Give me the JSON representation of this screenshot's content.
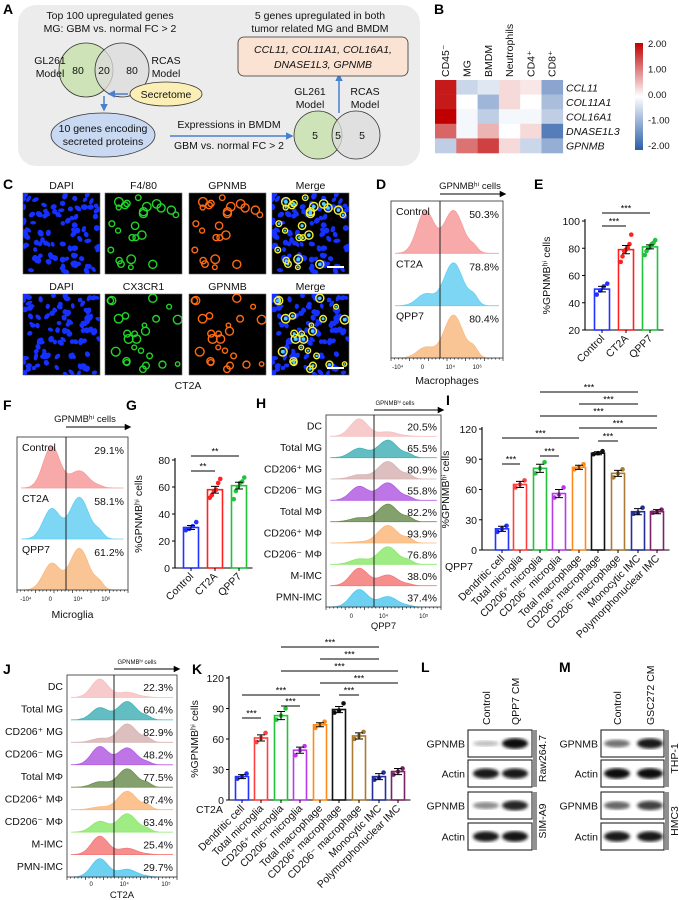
{
  "panel_labels": {
    "a": "A",
    "b": "B",
    "c": "C",
    "d": "D",
    "e": "E",
    "f": "F",
    "g": "G",
    "h": "H",
    "i": "I",
    "j": "J",
    "k": "K",
    "l": "L",
    "m": "M"
  },
  "panel_a": {
    "left_header": [
      "Top 100 upregulated genes",
      "MG: GBM vs. normal FC > 2"
    ],
    "venn1": {
      "left_label": [
        "GL261",
        "Model"
      ],
      "right_label": [
        "RCAS",
        "Model"
      ],
      "left": "80",
      "overlap": "20",
      "right": "80"
    },
    "secretome": "Secretome",
    "secreted_box": [
      "10 genes encoding",
      "secreted proteins"
    ],
    "arrow_label_top": "Expressions in BMDM",
    "arrow_label_bottom": "GBM vs. normal FC > 2",
    "venn2": {
      "left_label": [
        "GL261",
        "Model"
      ],
      "right_label": [
        "RCAS",
        "Model"
      ],
      "left": "5",
      "overlap": "5",
      "right": "5"
    },
    "right_header": [
      "5 genes upregulated in both",
      "tumor related MG and BMDM"
    ],
    "result_box": [
      "CCL11, COL11A1, COL16A1,",
      "DNASE1L3, GPNMB"
    ],
    "colors": {
      "venn_green": "#cfe3b8",
      "venn_gray": "#dcdcdc",
      "secretome": "#fbefb5",
      "secreted": "#c9d9f1",
      "result": "#fbe3d3",
      "arrow": "#4a7fd0",
      "panel_bg": "#ececec"
    }
  },
  "panel_c": {
    "row1": [
      "DAPI",
      "F4/80",
      "GPNMB",
      "Merge"
    ],
    "row2": [
      "DAPI",
      "CX3CR1",
      "GPNMB",
      "Merge"
    ],
    "condition": "CT2A",
    "channel_colors": [
      "#2a4dff",
      "#1fb83a",
      "#ff3a10",
      "#111111"
    ]
  },
  "gate_label": "GPNMBʰⁱ cells",
  "blots": {
    "l": {
      "lanes": [
        "Control",
        "QPP7 CM"
      ],
      "rows": [
        "GPNMB",
        "Actin",
        "GPNMB",
        "Actin"
      ],
      "cell_lines": [
        "Raw264.7",
        "SIM-A9"
      ]
    },
    "m": {
      "lanes": [
        "Control",
        "GSC272 CM"
      ],
      "rows": [
        "GPNMB",
        "Actin",
        "GPNMB",
        "Actin"
      ],
      "cell_lines": [
        "THP-1",
        "HMC3"
      ]
    }
  },
  "chart_data": [
    {
      "panel": "B",
      "type": "heatmap",
      "columns": [
        "CD45⁻",
        "MG",
        "BMDM",
        "Neutrophils",
        "CD4⁺",
        "CD8⁺"
      ],
      "rows": [
        "CCL11",
        "COL11A1",
        "COL16A1",
        "DNASE1L3",
        "GPNMB"
      ],
      "values": [
        [
          1.8,
          -0.5,
          -0.3,
          0.3,
          0.2,
          -1.1
        ],
        [
          1.8,
          0.0,
          -0.9,
          0.3,
          0.0,
          -0.8
        ],
        [
          2.0,
          -0.1,
          -0.6,
          -0.1,
          -0.1,
          -0.6
        ],
        [
          1.2,
          -0.1,
          0.6,
          0.0,
          0.3,
          -1.6
        ],
        [
          -0.6,
          1.1,
          1.5,
          0.3,
          -0.5,
          -1.0
        ]
      ],
      "colorbar_ticks": [
        "2.00",
        "1.00",
        "0.00",
        "-1.00",
        "-2.00"
      ],
      "range": [
        -2,
        2
      ],
      "colors": {
        "low": "#2b5ca8",
        "mid": "#ffffff",
        "high": "#c00000"
      }
    },
    {
      "panel": "D",
      "type": "histogram",
      "xlabel": "Macrophages",
      "xticks": [
        "-10⁴",
        "0",
        "10⁴",
        "10⁶"
      ],
      "rows": [
        {
          "name": "Control",
          "pct": "50.3%",
          "color": "#f79a9a"
        },
        {
          "name": "CT2A",
          "pct": "78.8%",
          "color": "#66d0f2"
        },
        {
          "name": "QPP7",
          "pct": "80.4%",
          "color": "#f9bb82"
        }
      ]
    },
    {
      "panel": "E",
      "type": "bar",
      "categories": [
        "Control",
        "CT2A",
        "QPP7"
      ],
      "values": [
        50,
        79,
        81
      ],
      "sem": [
        2,
        3,
        1.5
      ],
      "points": [
        [
          46,
          49,
          52,
          54
        ],
        [
          70,
          74,
          78,
          79,
          80,
          83,
          90
        ],
        [
          75,
          78,
          80,
          81,
          83,
          84,
          86
        ]
      ],
      "colors": [
        "#2433ff",
        "#ff2020",
        "#22c23a"
      ],
      "ylabel": "%GPNMBʰⁱ cells",
      "ylim": [
        20,
        100
      ],
      "yticks": [
        "20",
        "40",
        "60",
        "80",
        "100"
      ],
      "comparisons": [
        {
          "pair": [
            0,
            1
          ],
          "label": "***"
        },
        {
          "pair": [
            0,
            2
          ],
          "label": "***"
        }
      ]
    },
    {
      "panel": "F",
      "type": "histogram",
      "xlabel": "Microglia",
      "xticks": [
        "-10⁴",
        "0",
        "10⁴",
        "10⁶"
      ],
      "rows": [
        {
          "name": "Control",
          "pct": "29.1%",
          "color": "#f79a9a"
        },
        {
          "name": "CT2A",
          "pct": "58.1%",
          "color": "#66d0f2"
        },
        {
          "name": "QPP7",
          "pct": "61.2%",
          "color": "#f9bb82"
        }
      ]
    },
    {
      "panel": "G",
      "type": "bar",
      "categories": [
        "Control",
        "CT2A",
        "QPP7"
      ],
      "values": [
        30,
        58,
        61
      ],
      "sem": [
        1.5,
        2.5,
        2.5
      ],
      "points": [
        [
          28,
          29,
          31,
          34
        ],
        [
          52,
          54,
          57,
          58,
          63,
          66
        ],
        [
          51,
          57,
          60,
          63,
          64,
          67
        ]
      ],
      "colors": [
        "#2433ff",
        "#ff2020",
        "#22c23a"
      ],
      "ylabel": "%GPNMBʰⁱ cells",
      "ylim": [
        0,
        80
      ],
      "yticks": [
        "0",
        "20",
        "40",
        "60",
        "80"
      ],
      "comparisons": [
        {
          "pair": [
            0,
            1
          ],
          "label": "**"
        },
        {
          "pair": [
            0,
            2
          ],
          "label": "**"
        }
      ]
    },
    {
      "panel": "H",
      "type": "histogram",
      "xlabel": "QPP7",
      "xticks": [
        "0",
        "10⁴",
        "10⁵"
      ],
      "rows": [
        {
          "name": "DC",
          "pct": "20.5%",
          "color": "#f6c2c2"
        },
        {
          "name": "Total MG",
          "pct": "65.5%",
          "color": "#47b3b8"
        },
        {
          "name": "CD206⁺ MG",
          "pct": "80.9%",
          "color": "#d7b4b4"
        },
        {
          "name": "CD206⁻ MG",
          "pct": "55.8%",
          "color": "#b35ee3"
        },
        {
          "name": "Total MΦ",
          "pct": "82.2%",
          "color": "#6f8f52"
        },
        {
          "name": "CD206⁺ MΦ",
          "pct": "93.9%",
          "color": "#fbb97c"
        },
        {
          "name": "CD206⁻ MΦ",
          "pct": "76.8%",
          "color": "#8ee86e"
        },
        {
          "name": "M-IMC",
          "pct": "38.0%",
          "color": "#f47a7a"
        },
        {
          "name": "PMN-IMC",
          "pct": "37.4%",
          "color": "#55c9f0"
        }
      ]
    },
    {
      "panel": "I",
      "type": "bar",
      "condition": "QPP7",
      "categories": [
        "Dendritic cell",
        "Total microglia",
        "CD206⁺ microglia",
        "CD206⁻ microglia",
        "Total macrophage",
        "CD206⁺ macrophage",
        "CD206⁻ macrophage",
        "Monocytic IMC",
        "Polymorphonuclear IMC"
      ],
      "values": [
        21,
        65,
        81,
        56,
        82,
        96,
        76,
        38,
        38
      ],
      "sem": [
        2.5,
        3,
        4,
        4,
        2,
        1.5,
        3,
        3,
        2
      ],
      "points": [
        [
          18,
          21,
          24
        ],
        [
          62,
          65,
          69
        ],
        [
          76,
          81,
          87
        ],
        [
          52,
          55,
          62
        ],
        [
          80,
          82,
          85
        ],
        [
          95,
          96,
          98
        ],
        [
          72,
          76,
          80
        ],
        [
          36,
          37,
          42
        ],
        [
          37,
          38,
          40
        ]
      ],
      "colors": [
        "#2433ff",
        "#ff4040",
        "#22c23a",
        "#b83be6",
        "#ff8a1a",
        "#111111",
        "#a97b33",
        "#262e9c",
        "#7a2466"
      ],
      "ylabel": "%GPNMBʰⁱ cells",
      "ylim": [
        0,
        120
      ],
      "yticks": [
        "0",
        "30",
        "60",
        "90",
        "120"
      ],
      "comparisons": [
        {
          "pair": [
            0,
            1
          ],
          "label": "***"
        },
        {
          "pair": [
            2,
            3
          ],
          "label": "***"
        },
        {
          "pair": [
            0,
            4
          ],
          "label": "***"
        },
        {
          "pair": [
            5,
            6
          ],
          "label": "***"
        },
        {
          "pair": [
            4,
            8
          ],
          "label": "***"
        },
        {
          "pair": [
            2,
            8
          ],
          "label": "***"
        },
        {
          "pair": [
            4,
            7
          ],
          "label": "***"
        },
        {
          "pair": [
            2,
            7
          ],
          "label": "***"
        }
      ]
    },
    {
      "panel": "J",
      "type": "histogram",
      "xlabel": "CT2A",
      "xticks": [
        "0",
        "10⁴",
        "10⁵"
      ],
      "rows": [
        {
          "name": "DC",
          "pct": "22.3%",
          "color": "#f6c2c2"
        },
        {
          "name": "Total MG",
          "pct": "60.4%",
          "color": "#47b3b8"
        },
        {
          "name": "CD206⁺ MG",
          "pct": "82.9%",
          "color": "#d7b4b4"
        },
        {
          "name": "CD206⁻ MG",
          "pct": "48.2%",
          "color": "#b35ee3"
        },
        {
          "name": "Total MΦ",
          "pct": "77.5%",
          "color": "#6f8f52"
        },
        {
          "name": "CD206⁺ MΦ",
          "pct": "87.4%",
          "color": "#fbb97c"
        },
        {
          "name": "CD206⁻ MΦ",
          "pct": "63.4%",
          "color": "#8ee86e"
        },
        {
          "name": "M-IMC",
          "pct": "25.4%",
          "color": "#f47a7a"
        },
        {
          "name": "PMN-IMC",
          "pct": "29.7%",
          "color": "#55c9f0"
        }
      ]
    },
    {
      "panel": "K",
      "type": "bar",
      "condition": "CT2A",
      "categories": [
        "Dendritic cell",
        "Total microglia",
        "CD206⁺ microglia",
        "CD206⁻ microglia",
        "Total macrophage",
        "CD206⁺ macrophage",
        "CD206⁻ macrophage",
        "Monocytic IMC",
        "Polymorphonuclear IMC"
      ],
      "values": [
        23,
        61,
        83,
        49,
        74,
        89,
        63,
        23,
        28
      ],
      "sem": [
        2,
        3,
        4,
        3,
        2,
        3,
        3,
        3,
        3
      ],
      "points": [
        [
          21,
          23,
          26
        ],
        [
          57,
          61,
          66
        ],
        [
          79,
          83,
          90
        ],
        [
          44,
          49,
          53
        ],
        [
          71,
          74,
          77
        ],
        [
          86,
          88,
          95
        ],
        [
          60,
          63,
          67
        ],
        [
          20,
          22,
          27
        ],
        [
          25,
          28,
          31
        ]
      ],
      "colors": [
        "#2433ff",
        "#ff4040",
        "#22c23a",
        "#b83be6",
        "#ff8a1a",
        "#111111",
        "#a97b33",
        "#262e9c",
        "#7a2466"
      ],
      "ylabel": "%GPNMBʰⁱ cells",
      "ylim": [
        0,
        120
      ],
      "yticks": [
        "0",
        "30",
        "60",
        "90",
        "120"
      ],
      "comparisons": [
        {
          "pair": [
            0,
            1
          ],
          "label": "***"
        },
        {
          "pair": [
            2,
            3
          ],
          "label": "***"
        },
        {
          "pair": [
            0,
            4
          ],
          "label": "***"
        },
        {
          "pair": [
            5,
            6
          ],
          "label": "***"
        },
        {
          "pair": [
            4,
            8
          ],
          "label": "***"
        },
        {
          "pair": [
            2,
            8
          ],
          "label": "***"
        },
        {
          "pair": [
            4,
            7
          ],
          "label": "***"
        },
        {
          "pair": [
            2,
            7
          ],
          "label": "***"
        }
      ]
    }
  ]
}
